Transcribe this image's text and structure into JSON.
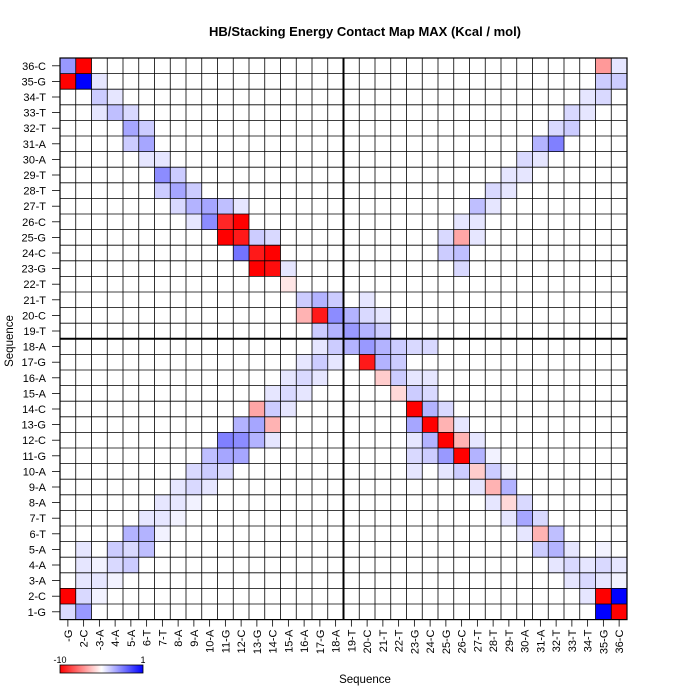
{
  "chart_data": {
    "type": "heatmap",
    "title": "HB/Stacking Energy Contact Map MAX (Kcal / mol)",
    "xlabel": "Sequence",
    "ylabel": "Sequence",
    "labels": [
      "1-G",
      "2-C",
      "3-A",
      "4-A",
      "5-A",
      "6-T",
      "7-T",
      "8-A",
      "9-A",
      "10-A",
      "11-G",
      "12-C",
      "13-G",
      "14-C",
      "15-A",
      "16-A",
      "17-G",
      "18-A",
      "19-T",
      "20-C",
      "21-T",
      "22-T",
      "23-G",
      "24-C",
      "25-G",
      "26-C",
      "27-T",
      "28-T",
      "29-T",
      "30-A",
      "31-A",
      "32-T",
      "33-T",
      "34-T",
      "35-G",
      "36-C"
    ],
    "x_tick_labels": [
      "-G",
      "2-C",
      "-3-A",
      "4-A",
      "5-A",
      "6-T",
      "7-T",
      "8-A",
      "9-A",
      "10-A",
      "11-G",
      "12-C",
      "13-G",
      "14-C",
      "15-A",
      "16-A",
      "17-G",
      "18-A",
      "19-T",
      "20-C",
      "21-T",
      "22-T",
      "23-G",
      "24-C",
      "25-G",
      "26-C",
      "27-T",
      "28-T",
      "29-T",
      "30-A",
      "31-A",
      "32-T",
      "33-T",
      "34-T",
      "35-G",
      "36-C"
    ],
    "colorbar": {
      "min": -10,
      "max": 1,
      "min_label": "-10",
      "max_label": "1",
      "low_color": "#ff0000",
      "mid_color": "#ffffff",
      "high_color": "#0000ff"
    },
    "cells": [
      [
        1,
        1,
        0.15
      ],
      [
        1,
        2,
        -1
      ],
      [
        1,
        35,
        -1
      ],
      [
        1,
        36,
        0.4
      ],
      [
        2,
        1,
        0.4
      ],
      [
        2,
        2,
        0.15
      ],
      [
        2,
        3,
        0.1
      ],
      [
        2,
        4,
        0.1
      ],
      [
        2,
        5,
        0.1
      ],
      [
        2,
        35,
        1
      ],
      [
        2,
        36,
        -1
      ],
      [
        3,
        2,
        0.05
      ],
      [
        3,
        3,
        0.1
      ],
      [
        3,
        4,
        0.05
      ],
      [
        3,
        33,
        0.1
      ],
      [
        3,
        34,
        0.2
      ],
      [
        3,
        35,
        0.1
      ],
      [
        4,
        3,
        0.05
      ],
      [
        4,
        4,
        0.15
      ],
      [
        4,
        5,
        0.2
      ],
      [
        4,
        33,
        0.25
      ],
      [
        4,
        34,
        0.1
      ],
      [
        5,
        4,
        0.2
      ],
      [
        5,
        5,
        0.15
      ],
      [
        5,
        6,
        0.3
      ],
      [
        5,
        31,
        0.2
      ],
      [
        5,
        32,
        0.35
      ],
      [
        5,
        33,
        0.15
      ],
      [
        6,
        5,
        0.25
      ],
      [
        6,
        6,
        0.3
      ],
      [
        6,
        7,
        0.1
      ],
      [
        6,
        30,
        0.1
      ],
      [
        6,
        31,
        0.35
      ],
      [
        6,
        32,
        0.2
      ],
      [
        7,
        6,
        0.05
      ],
      [
        7,
        7,
        0.1
      ],
      [
        7,
        8,
        0.1
      ],
      [
        7,
        28,
        0.2
      ],
      [
        7,
        29,
        0.45
      ],
      [
        7,
        30,
        0.1
      ],
      [
        8,
        7,
        0.05
      ],
      [
        8,
        8,
        0.1
      ],
      [
        8,
        9,
        0.1
      ],
      [
        8,
        27,
        0.15
      ],
      [
        8,
        28,
        0.35
      ],
      [
        8,
        29,
        0.2
      ],
      [
        9,
        8,
        0.05
      ],
      [
        9,
        9,
        0.15
      ],
      [
        9,
        10,
        0.15
      ],
      [
        9,
        26,
        0.1
      ],
      [
        9,
        27,
        0.3
      ],
      [
        9,
        28,
        0.2
      ],
      [
        10,
        9,
        0.1
      ],
      [
        10,
        10,
        0.2
      ],
      [
        10,
        11,
        0.25
      ],
      [
        10,
        26,
        0.45
      ],
      [
        10,
        27,
        0.35
      ],
      [
        11,
        10,
        0.15
      ],
      [
        11,
        11,
        0.35
      ],
      [
        11,
        12,
        0.5
      ],
      [
        11,
        25,
        -1
      ],
      [
        11,
        26,
        -0.85
      ],
      [
        11,
        27,
        0.25
      ],
      [
        12,
        11,
        0.35
      ],
      [
        12,
        12,
        0.45
      ],
      [
        12,
        13,
        0.3
      ],
      [
        12,
        24,
        0.55
      ],
      [
        12,
        25,
        -0.9
      ],
      [
        12,
        26,
        -1
      ],
      [
        12,
        27,
        0.1
      ],
      [
        13,
        12,
        0.3
      ],
      [
        13,
        13,
        0.35
      ],
      [
        13,
        14,
        -0.35
      ],
      [
        13,
        23,
        -1
      ],
      [
        13,
        24,
        -0.9
      ],
      [
        13,
        25,
        0.2
      ],
      [
        14,
        12,
        0.1
      ],
      [
        14,
        13,
        -0.3
      ],
      [
        14,
        14,
        0.2
      ],
      [
        14,
        15,
        0.1
      ],
      [
        14,
        23,
        -0.95
      ],
      [
        14,
        24,
        -1
      ],
      [
        14,
        25,
        0.15
      ],
      [
        15,
        14,
        0.1
      ],
      [
        15,
        15,
        0.15
      ],
      [
        15,
        16,
        0.1
      ],
      [
        15,
        22,
        -0.1
      ],
      [
        15,
        23,
        0.1
      ],
      [
        16,
        15,
        0.1
      ],
      [
        16,
        16,
        0.15
      ],
      [
        16,
        17,
        0.1
      ],
      [
        16,
        20,
        -0.3
      ],
      [
        16,
        21,
        0.2
      ],
      [
        17,
        16,
        0.1
      ],
      [
        17,
        17,
        0.2
      ],
      [
        17,
        18,
        0.1
      ],
      [
        17,
        19,
        0.2
      ],
      [
        17,
        20,
        -0.9
      ],
      [
        17,
        21,
        0.3
      ],
      [
        18,
        17,
        0.1
      ],
      [
        18,
        18,
        0.2
      ],
      [
        18,
        19,
        0.3
      ],
      [
        18,
        20,
        0.45
      ],
      [
        18,
        21,
        0.2
      ],
      [
        19,
        18,
        0.3
      ],
      [
        19,
        19,
        0.4
      ],
      [
        19,
        20,
        0.3
      ],
      [
        20,
        17,
        -0.9
      ],
      [
        20,
        18,
        0.4
      ],
      [
        20,
        19,
        0.3
      ],
      [
        20,
        20,
        0.15
      ],
      [
        20,
        21,
        0.1
      ],
      [
        21,
        16,
        -0.2
      ],
      [
        21,
        17,
        0.3
      ],
      [
        21,
        18,
        0.3
      ],
      [
        21,
        19,
        0.2
      ],
      [
        21,
        20,
        0.1
      ],
      [
        22,
        15,
        -0.15
      ],
      [
        22,
        16,
        0.2
      ],
      [
        22,
        17,
        0.2
      ],
      [
        22,
        18,
        0.2
      ],
      [
        23,
        10,
        0.1
      ],
      [
        23,
        11,
        0.15
      ],
      [
        23,
        12,
        0.1
      ],
      [
        23,
        13,
        0.35
      ],
      [
        23,
        14,
        -1
      ],
      [
        23,
        15,
        0.2
      ],
      [
        23,
        16,
        0.1
      ],
      [
        23,
        18,
        0.15
      ],
      [
        24,
        11,
        0.2
      ],
      [
        24,
        12,
        0.3
      ],
      [
        24,
        13,
        -1
      ],
      [
        24,
        14,
        0.3
      ],
      [
        24,
        15,
        0.15
      ],
      [
        24,
        16,
        0.1
      ],
      [
        24,
        18,
        0.15
      ],
      [
        25,
        10,
        0.1
      ],
      [
        25,
        11,
        0.4
      ],
      [
        25,
        12,
        -1
      ],
      [
        25,
        13,
        -0.3
      ],
      [
        25,
        14,
        0.15
      ],
      [
        25,
        24,
        0.2
      ],
      [
        25,
        25,
        0.15
      ],
      [
        26,
        10,
        0.2
      ],
      [
        26,
        11,
        -1
      ],
      [
        26,
        12,
        -0.3
      ],
      [
        26,
        13,
        0.1
      ],
      [
        26,
        23,
        0.15
      ],
      [
        26,
        24,
        0.25
      ],
      [
        26,
        25,
        -0.35
      ],
      [
        26,
        26,
        0.1
      ],
      [
        27,
        9,
        0.1
      ],
      [
        27,
        10,
        -0.2
      ],
      [
        27,
        11,
        0.3
      ],
      [
        27,
        12,
        0.1
      ],
      [
        27,
        25,
        0.1
      ],
      [
        27,
        26,
        0.1
      ],
      [
        27,
        27,
        0.25
      ],
      [
        28,
        8,
        0.1
      ],
      [
        28,
        9,
        -0.3
      ],
      [
        28,
        10,
        0.2
      ],
      [
        28,
        11,
        0.05
      ],
      [
        28,
        27,
        0.1
      ],
      [
        28,
        28,
        0.15
      ],
      [
        29,
        7,
        0.1
      ],
      [
        29,
        8,
        -0.15
      ],
      [
        29,
        9,
        0.3
      ],
      [
        29,
        10,
        0.05
      ],
      [
        29,
        28,
        0.1
      ],
      [
        29,
        29,
        0.1
      ],
      [
        30,
        6,
        0.1
      ],
      [
        30,
        7,
        0.35
      ],
      [
        30,
        8,
        0.15
      ],
      [
        30,
        29,
        0.1
      ],
      [
        30,
        30,
        0.15
      ],
      [
        31,
        5,
        0.2
      ],
      [
        31,
        6,
        -0.3
      ],
      [
        31,
        7,
        0.15
      ],
      [
        31,
        30,
        0.1
      ],
      [
        31,
        31,
        0.3
      ],
      [
        32,
        4,
        0.1
      ],
      [
        32,
        5,
        0.3
      ],
      [
        32,
        6,
        0.25
      ],
      [
        32,
        31,
        0.5
      ],
      [
        32,
        32,
        0.15
      ],
      [
        33,
        3,
        0.1
      ],
      [
        33,
        4,
        0.15
      ],
      [
        33,
        5,
        0.1
      ],
      [
        33,
        32,
        0.2
      ],
      [
        33,
        33,
        0.15
      ],
      [
        34,
        2,
        0.1
      ],
      [
        34,
        3,
        0.15
      ],
      [
        34,
        4,
        0.1
      ],
      [
        34,
        33,
        0.1
      ],
      [
        34,
        34,
        0.1
      ],
      [
        35,
        1,
        1
      ],
      [
        35,
        2,
        -1
      ],
      [
        35,
        3,
        0.1
      ],
      [
        35,
        4,
        0.15
      ],
      [
        35,
        5,
        0.05
      ],
      [
        35,
        34,
        0.15
      ],
      [
        35,
        35,
        0.2
      ],
      [
        35,
        36,
        -0.4
      ],
      [
        36,
        1,
        -1
      ],
      [
        36,
        2,
        1
      ],
      [
        36,
        3,
        0.05
      ],
      [
        36,
        4,
        0.1
      ],
      [
        36,
        35,
        0.2
      ],
      [
        36,
        36,
        0.1
      ]
    ]
  }
}
